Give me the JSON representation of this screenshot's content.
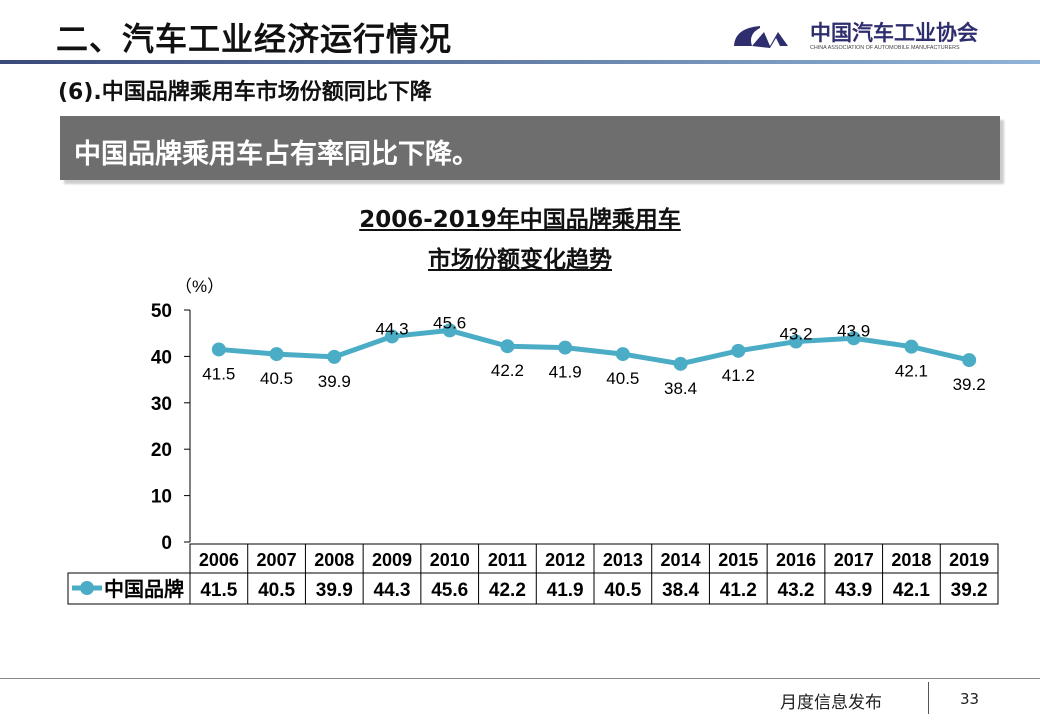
{
  "header": {
    "title": "二、汽车工业经济运行情况",
    "subtitle": "(6).中国品牌乘用车市场份额同比下降",
    "logo_text": "中国汽车工业协会",
    "logo_sub": "CHINA ASSOCIATION OF AUTOMOBILE MANUFACTURERS"
  },
  "banner": "中国品牌乘用车占有率同比下降。",
  "footer": {
    "label": "月度信息发布",
    "page": "33"
  },
  "colors": {
    "series": "#4bacc6"
  },
  "chart_data": {
    "type": "line",
    "title_line1": "2006-2019年中国品牌乘用车",
    "title_line2": "市场份额变化趋势",
    "ylabel": "（%）",
    "ylim": [
      0,
      50
    ],
    "yticks": [
      0,
      10,
      20,
      30,
      40,
      50
    ],
    "categories": [
      "2006",
      "2007",
      "2008",
      "2009",
      "2010",
      "2011",
      "2012",
      "2013",
      "2014",
      "2015",
      "2016",
      "2017",
      "2018",
      "2019"
    ],
    "series": [
      {
        "name": "中国品牌",
        "values": [
          41.5,
          40.5,
          39.9,
          44.3,
          45.6,
          42.2,
          41.9,
          40.5,
          38.4,
          41.2,
          43.2,
          43.9,
          42.1,
          39.2
        ]
      }
    ],
    "data_table": true
  }
}
